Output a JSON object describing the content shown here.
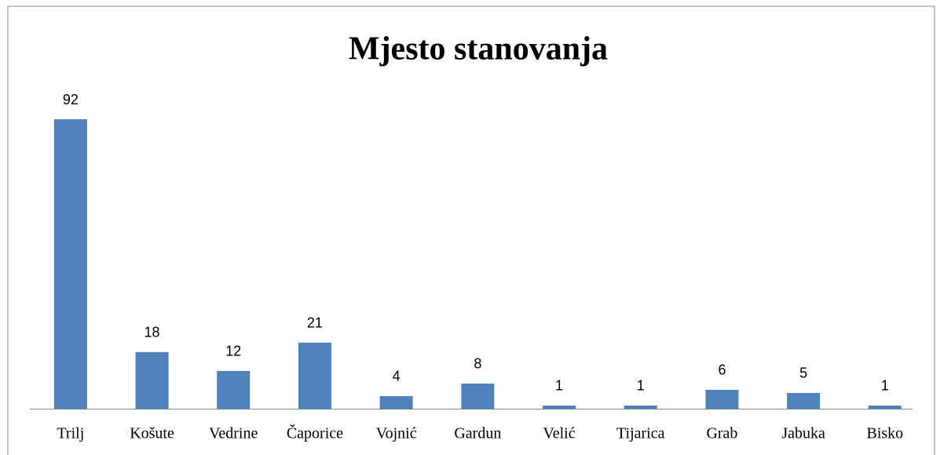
{
  "chart_data": {
    "type": "bar",
    "title": "Mjesto stanovanja",
    "categories": [
      "Trilj",
      "Košute",
      "Vedrine",
      "Čaporice",
      "Vojnić",
      "Gardun",
      "Velić",
      "Tijarica",
      "Grab",
      "Jabuka",
      "Bisko"
    ],
    "values": [
      92,
      18,
      12,
      21,
      4,
      8,
      1,
      1,
      6,
      5,
      1
    ],
    "color": "#4f81bd"
  }
}
